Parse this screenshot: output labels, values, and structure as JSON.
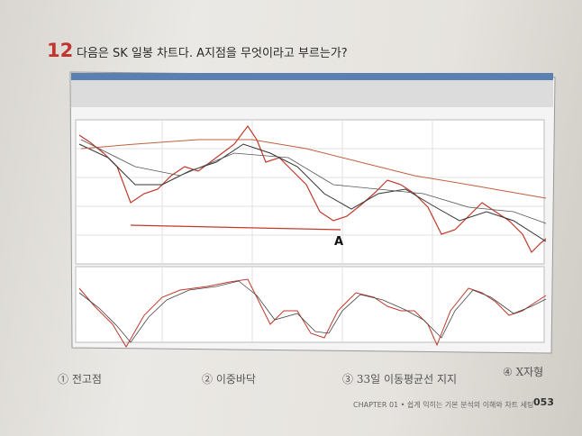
{
  "question": {
    "number": "12",
    "text": "다음은 SK 일봉 차트다. A지점을 무엇이라고 부르는가?"
  },
  "chart_label": "A",
  "options": [
    "① 전고점",
    "② 이중바닥",
    "③ 33일 이동평균선 지지",
    "④ X자형"
  ],
  "footer": {
    "chapter": "CHAPTER 01 • 쉽게 익히는 기본 분석의 이해와 차트 세팅",
    "page": "053"
  }
}
